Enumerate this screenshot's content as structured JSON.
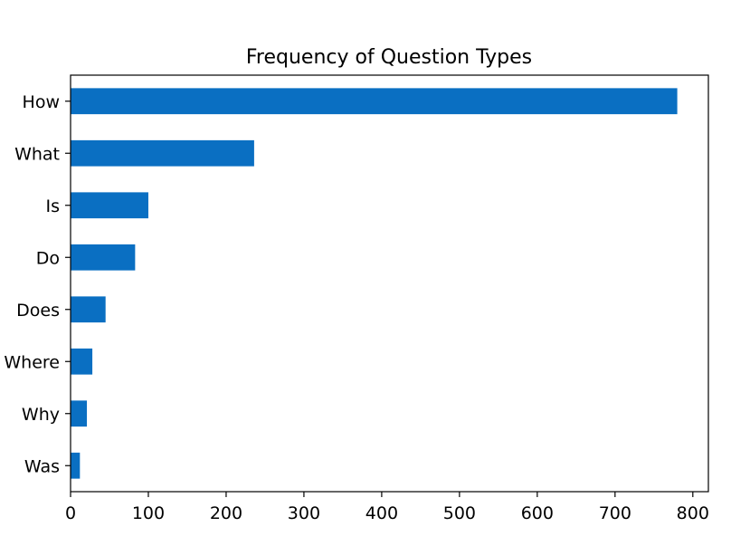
{
  "chart_data": {
    "type": "bar",
    "orientation": "horizontal",
    "title": "Frequency of Question Types",
    "xlabel": "",
    "ylabel": "",
    "categories": [
      "How",
      "What",
      "Is",
      "Do",
      "Does",
      "Where",
      "Why",
      "Was"
    ],
    "values": [
      780,
      236,
      100,
      83,
      45,
      28,
      21,
      12
    ],
    "xlim": [
      0,
      820
    ],
    "xticks": [
      0,
      100,
      200,
      300,
      400,
      500,
      600,
      700,
      800
    ],
    "grid": false,
    "legend": "none",
    "bar_color": "#0a6fc2"
  }
}
